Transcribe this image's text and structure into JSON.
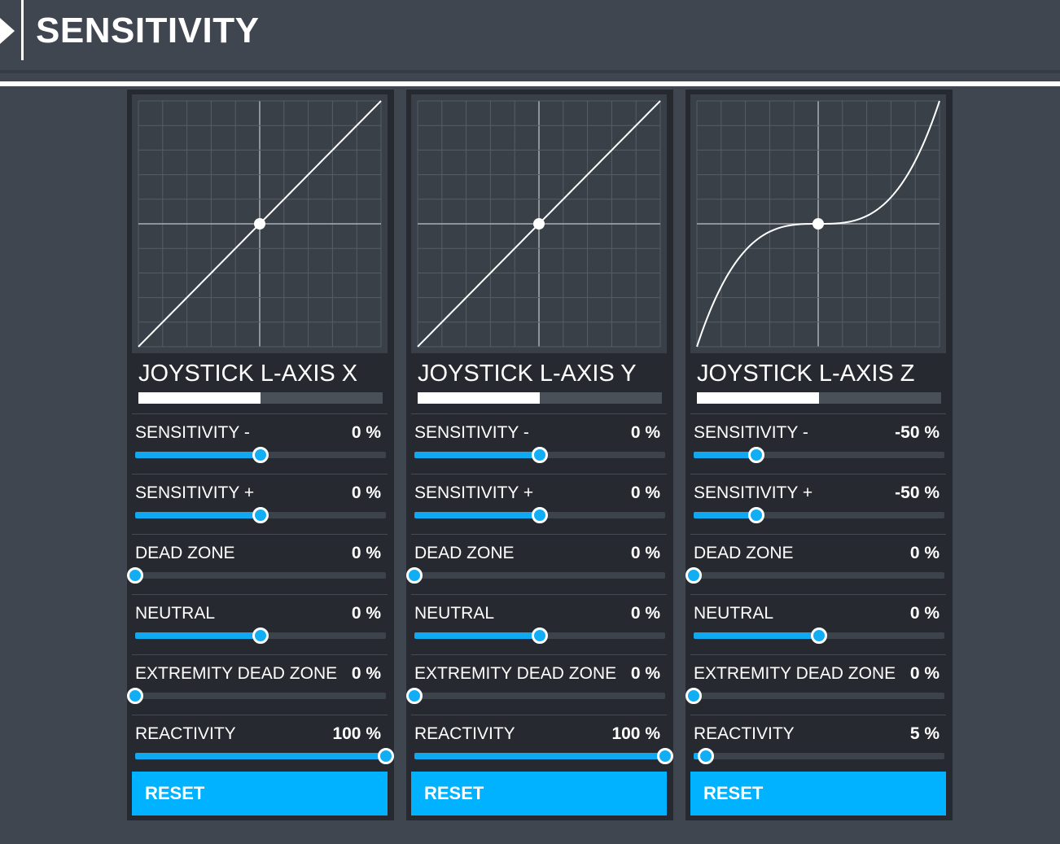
{
  "header": {
    "title": "SENSITIVITY"
  },
  "panels": [
    {
      "axis_name": "JOYSTICK L-AXIS X",
      "meter_fraction": 0.5,
      "curve_exponent": 1,
      "rows": [
        {
          "label": "SENSITIVITY -",
          "value": "0 %",
          "fraction": 0.5
        },
        {
          "label": "SENSITIVITY +",
          "value": "0 %",
          "fraction": 0.5
        },
        {
          "label": "DEAD ZONE",
          "value": "0 %",
          "fraction": 0.0
        },
        {
          "label": "NEUTRAL",
          "value": "0 %",
          "fraction": 0.5
        },
        {
          "label": "EXTREMITY DEAD ZONE",
          "value": "0 %",
          "fraction": 0.0
        },
        {
          "label": "REACTIVITY",
          "value": "100 %",
          "fraction": 1.0
        }
      ],
      "reset_label": "RESET"
    },
    {
      "axis_name": "JOYSTICK L-AXIS Y",
      "meter_fraction": 0.5,
      "curve_exponent": 1,
      "rows": [
        {
          "label": "SENSITIVITY -",
          "value": "0 %",
          "fraction": 0.5
        },
        {
          "label": "SENSITIVITY +",
          "value": "0 %",
          "fraction": 0.5
        },
        {
          "label": "DEAD ZONE",
          "value": "0 %",
          "fraction": 0.0
        },
        {
          "label": "NEUTRAL",
          "value": "0 %",
          "fraction": 0.5
        },
        {
          "label": "EXTREMITY DEAD ZONE",
          "value": "0 %",
          "fraction": 0.0
        },
        {
          "label": "REACTIVITY",
          "value": "100 %",
          "fraction": 1.0
        }
      ],
      "reset_label": "RESET"
    },
    {
      "axis_name": "JOYSTICK L-AXIS Z",
      "meter_fraction": 0.5,
      "curve_exponent": 3,
      "rows": [
        {
          "label": "SENSITIVITY -",
          "value": "-50 %",
          "fraction": 0.25
        },
        {
          "label": "SENSITIVITY +",
          "value": "-50 %",
          "fraction": 0.25
        },
        {
          "label": "DEAD ZONE",
          "value": "0 %",
          "fraction": 0.0
        },
        {
          "label": "NEUTRAL",
          "value": "0 %",
          "fraction": 0.5
        },
        {
          "label": "EXTREMITY DEAD ZONE",
          "value": "0 %",
          "fraction": 0.0
        },
        {
          "label": "REACTIVITY",
          "value": "5 %",
          "fraction": 0.05
        }
      ],
      "reset_label": "RESET"
    }
  ],
  "colors": {
    "accent": "#00b2ff",
    "background": "#3f4650",
    "panel": "#262a30",
    "graph": "#3a4048"
  }
}
